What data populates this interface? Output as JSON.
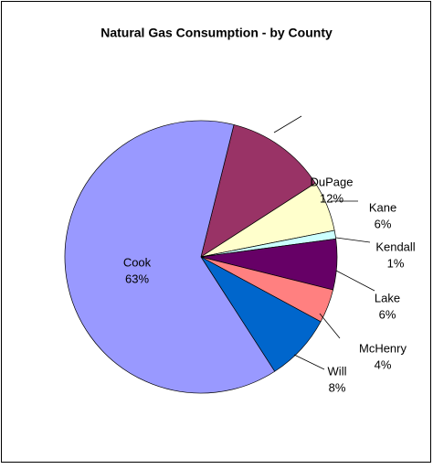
{
  "chart_data": {
    "type": "pie",
    "title": "Natural Gas Consumption - by County",
    "categories": [
      "DuPage",
      "Kane",
      "Kendall",
      "Lake",
      "McHenry",
      "Will",
      "Cook"
    ],
    "values": [
      12,
      6,
      1,
      6,
      4,
      8,
      63
    ],
    "value_labels": [
      "12%",
      "6%",
      "1%",
      "6%",
      "4%",
      "8%",
      "63%"
    ],
    "colors": [
      "#993366",
      "#ffffcc",
      "#ccffff",
      "#660066",
      "#ff8080",
      "#0066cc",
      "#9999ff"
    ]
  }
}
